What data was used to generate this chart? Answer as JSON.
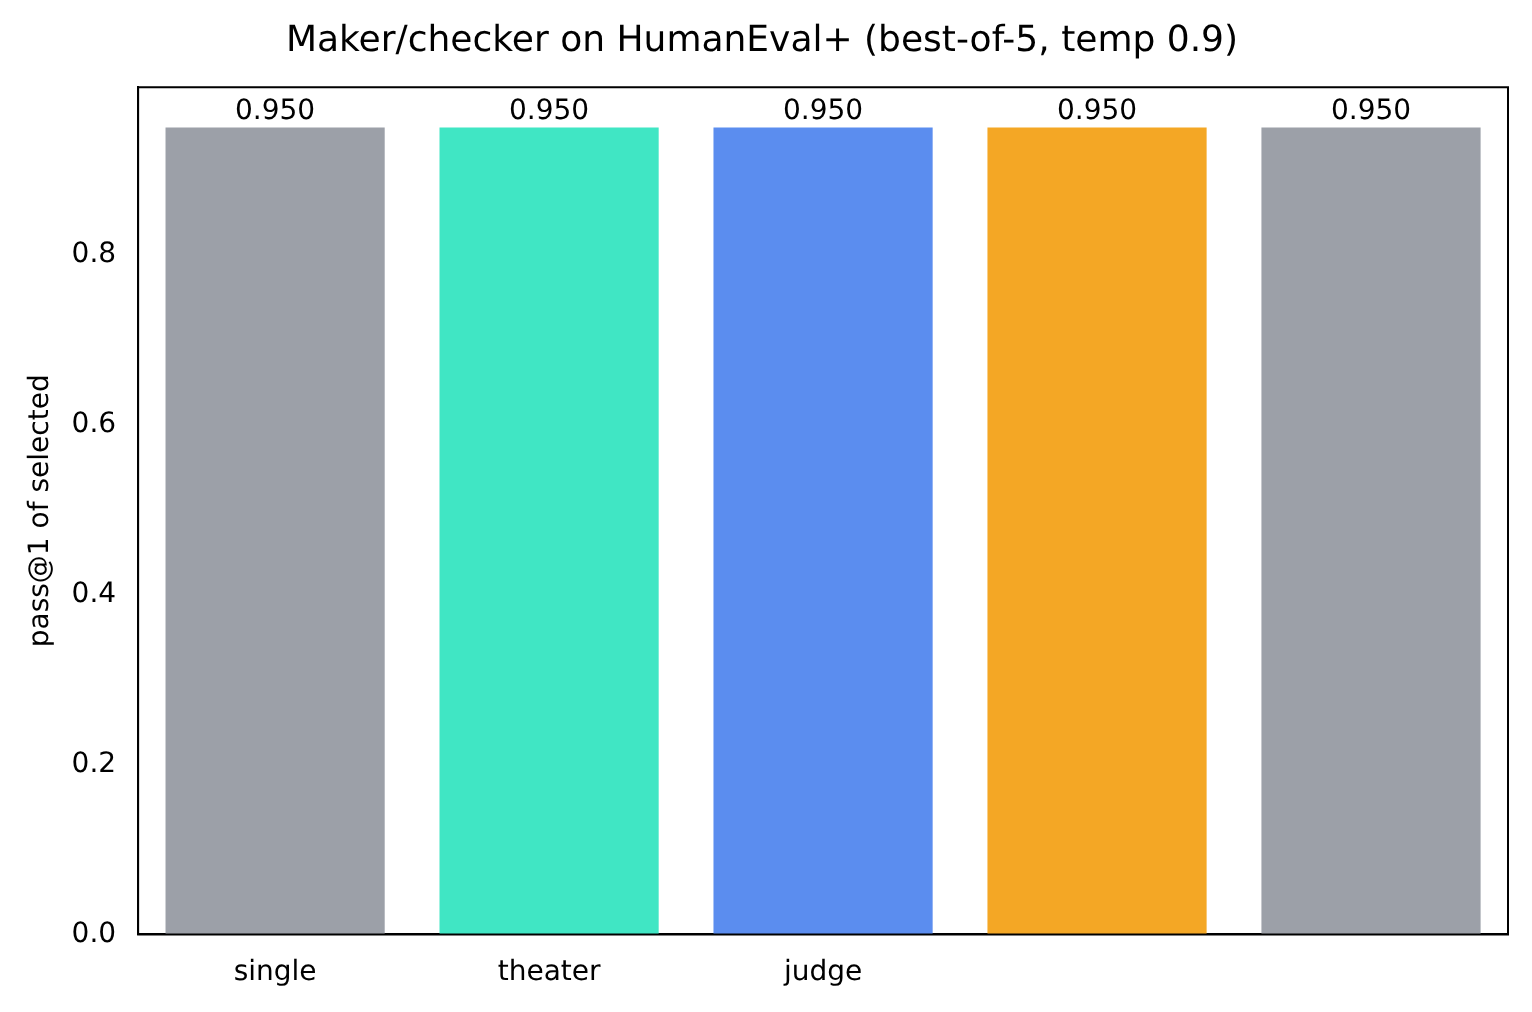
{
  "chart_data": {
    "type": "bar",
    "title": "Maker/checker on HumanEval+ (best-of-5, temp 0.9)",
    "ylabel": "pass@1 of selected",
    "categories": [
      "single",
      "theater",
      "judge",
      null,
      null
    ],
    "values": [
      0.95,
      0.95,
      0.95,
      0.95,
      0.95
    ],
    "value_labels": [
      "0.950",
      "0.950",
      "0.950",
      "0.950",
      "0.950"
    ],
    "colors": [
      "#9ca0a8",
      "#40e6c4",
      "#5b8def",
      "#f4a725",
      "#9ca0a8"
    ],
    "ylim": [
      0,
      0.9975
    ],
    "yticks": [
      {
        "value": 0,
        "label": "0.0"
      },
      {
        "value": 0.2,
        "label": "0.2"
      },
      {
        "value": 0.4,
        "label": "0.4"
      },
      {
        "value": 0.6,
        "label": "0.6"
      },
      {
        "value": 0.8,
        "label": "0.8"
      }
    ],
    "grid": false,
    "legend": false
  }
}
